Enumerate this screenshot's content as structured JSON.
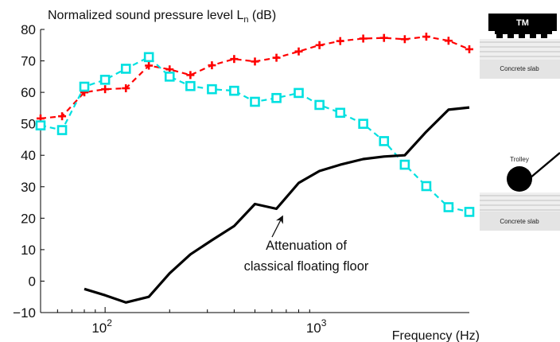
{
  "chart_data": {
    "type": "line",
    "title": "",
    "ylabel_text": "Normalized sound pressure level L",
    "ylabel_sub": "n",
    "ylabel_unit": " (dB)",
    "xlabel": "Frequency (Hz)",
    "x_scale": "log",
    "xlim": [
      50,
      5000
    ],
    "ylim": [
      -10,
      80
    ],
    "yticks": [
      "80",
      "70",
      "60",
      "50",
      "40",
      "30",
      "20",
      "10",
      "0",
      "−10"
    ],
    "xtick_base": "10",
    "xtick_exps": [
      "2",
      "3"
    ],
    "grid": false,
    "series": [
      {
        "color": "#ff0000",
        "marker": "plus",
        "dashed": true,
        "x": [
          50,
          63,
          80,
          100,
          125,
          160,
          200,
          250,
          315,
          400,
          500,
          630,
          800,
          1000,
          1250,
          1600,
          2000,
          2500,
          3150,
          4000,
          5000
        ],
        "y": [
          51.7,
          52.4,
          60,
          61,
          61.3,
          68.5,
          67.3,
          65.5,
          68.6,
          70.6,
          69.8,
          71,
          73,
          75,
          76.3,
          77.1,
          77.3,
          76.9,
          77.7,
          76.4,
          73.7
        ]
      },
      {
        "color": "#00e0e0",
        "marker": "square",
        "dashed": true,
        "x": [
          50,
          63,
          80,
          100,
          125,
          160,
          200,
          250,
          315,
          400,
          500,
          630,
          800,
          1000,
          1250,
          1600,
          2000,
          2500,
          3150,
          4000,
          5000
        ],
        "y": [
          49.5,
          48,
          61.8,
          64,
          67.5,
          71.2,
          65,
          62,
          61,
          60.5,
          57,
          58.2,
          59.8,
          56,
          53.5,
          50,
          44.5,
          37,
          30.2,
          23.5,
          22
        ]
      },
      {
        "color": "#000000",
        "marker": "none",
        "dashed": false,
        "x": [
          80,
          100,
          125,
          160,
          200,
          250,
          315,
          400,
          500,
          630,
          800,
          1000,
          1250,
          1600,
          2000,
          2500,
          3150,
          4000,
          5000
        ],
        "y": [
          -2.5,
          -4.5,
          -6.8,
          -5,
          2.5,
          8.5,
          13,
          17.5,
          24.5,
          23,
          31.2,
          35,
          37,
          38.8,
          39.6,
          40,
          47.5,
          54.5,
          55.2
        ]
      }
    ],
    "annotation": {
      "lines": [
        "Attenuation of",
        "classical floating floor"
      ],
      "arrow_to": {
        "x": 660,
        "y": 22
      }
    }
  },
  "insets": {
    "top": {
      "tm_label": "TM",
      "slab_label": "Concrete slab"
    },
    "bottom": {
      "trolley_label": "Trolley",
      "slab_label": "Concrete slab"
    }
  }
}
